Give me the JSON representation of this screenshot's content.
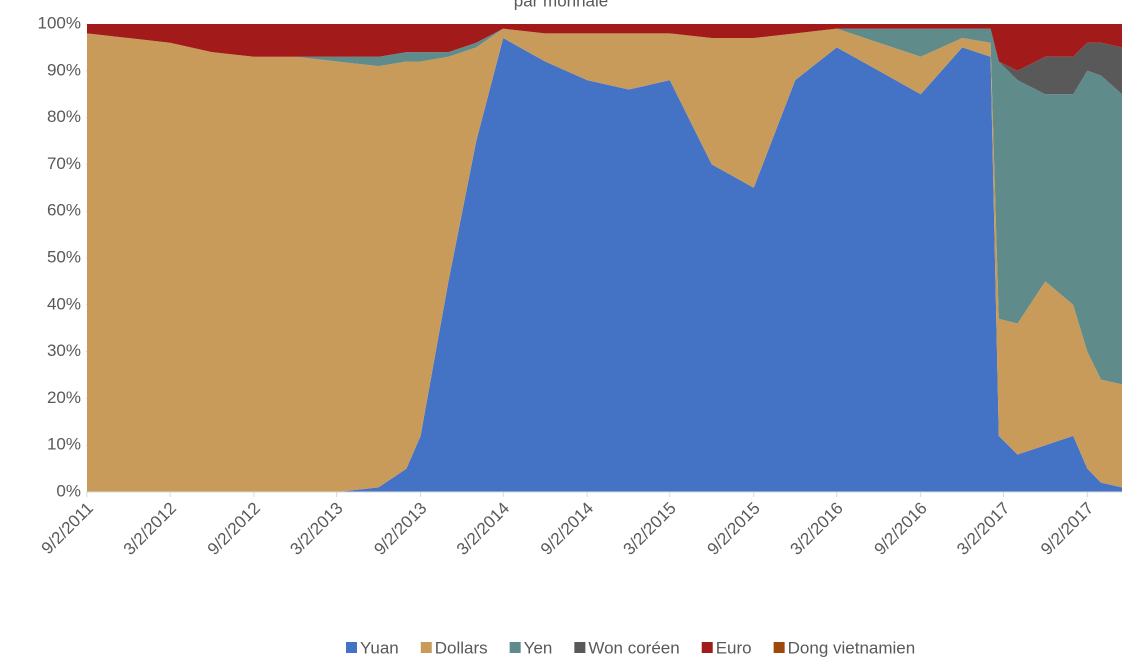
{
  "chart_data": {
    "type": "stacked_area",
    "title": "par monnaie",
    "x": [
      "9/2/2011",
      "12/2/2011",
      "3/2/2012",
      "6/2/2012",
      "9/2/2012",
      "12/2/2012",
      "3/2/2013",
      "6/2/2013",
      "8/2/2013",
      "9/2/2013",
      "11/2/2013",
      "1/2/2014",
      "3/2/2014",
      "6/2/2014",
      "9/2/2014",
      "12/2/2014",
      "3/2/2015",
      "6/2/2015",
      "9/2/2015",
      "12/2/2015",
      "3/2/2016",
      "6/2/2016",
      "9/2/2016",
      "12/2/2016",
      "2/2/2017",
      "2/20/2017",
      "4/2/2017",
      "6/2/2017",
      "8/2/2017",
      "9/2/2017",
      "10/2/2017",
      "11/17/2017"
    ],
    "series": [
      {
        "name": "Yuan",
        "color": "#4472c4",
        "values": [
          0,
          0,
          0,
          0,
          0,
          0,
          0,
          1,
          5,
          12,
          45,
          75,
          97,
          92,
          88,
          86,
          88,
          70,
          65,
          88,
          95,
          90,
          85,
          95,
          93,
          12,
          8,
          10,
          12,
          5,
          2,
          1
        ]
      },
      {
        "name": "Dollars",
        "color": "#c99b5a",
        "values": [
          98,
          97,
          96,
          94,
          93,
          93,
          92,
          90,
          87,
          80,
          48,
          20,
          2,
          6,
          10,
          12,
          10,
          27,
          32,
          10,
          4,
          6,
          8,
          2,
          3,
          25,
          28,
          35,
          28,
          25,
          22,
          22
        ]
      },
      {
        "name": "Yen",
        "color": "#5f8b8b",
        "values": [
          0,
          0,
          0,
          0,
          0,
          0,
          1,
          2,
          2,
          2,
          1,
          1,
          0,
          0,
          0,
          0,
          0,
          0,
          0,
          0,
          0,
          3,
          6,
          2,
          3,
          55,
          52,
          40,
          45,
          60,
          65,
          62
        ]
      },
      {
        "name": "Won coréen",
        "color": "#595959",
        "values": [
          0,
          0,
          0,
          0,
          0,
          0,
          0,
          0,
          0,
          0,
          0,
          0,
          0,
          0,
          0,
          0,
          0,
          0,
          0,
          0,
          0,
          0,
          0,
          0,
          0,
          0,
          2,
          8,
          8,
          6,
          7,
          10
        ]
      },
      {
        "name": "Euro",
        "color": "#a31a1a",
        "values": [
          2,
          3,
          4,
          6,
          7,
          7,
          7,
          7,
          6,
          6,
          6,
          4,
          1,
          2,
          2,
          2,
          2,
          3,
          3,
          2,
          1,
          1,
          1,
          1,
          1,
          8,
          10,
          7,
          7,
          4,
          4,
          5
        ]
      },
      {
        "name": "Dong vietnamien",
        "color": "#9e480e",
        "values": [
          0,
          0,
          0,
          0,
          0,
          0,
          0,
          0,
          0,
          0,
          0,
          0,
          0,
          0,
          0,
          0,
          0,
          0,
          0,
          0,
          0,
          0,
          0,
          0,
          0,
          0,
          0,
          0,
          0,
          0,
          0,
          0
        ]
      }
    ],
    "xlim": [
      "9/2/2011",
      "11/17/2017"
    ],
    "xticks": [
      "9/2/2011",
      "3/2/2012",
      "9/2/2012",
      "3/2/2013",
      "9/2/2013",
      "3/2/2014",
      "9/2/2014",
      "3/2/2015",
      "9/2/2015",
      "3/2/2016",
      "9/2/2016",
      "3/2/2017",
      "9/2/2017"
    ],
    "ylim": [
      0,
      100
    ],
    "yticks": [
      {
        "value": 0,
        "label": "0%"
      },
      {
        "value": 10,
        "label": "10%"
      },
      {
        "value": 20,
        "label": "20%"
      },
      {
        "value": 30,
        "label": "30%"
      },
      {
        "value": 40,
        "label": "40%"
      },
      {
        "value": 50,
        "label": "50%"
      },
      {
        "value": 60,
        "label": "60%"
      },
      {
        "value": 70,
        "label": "70%"
      },
      {
        "value": 80,
        "label": "80%"
      },
      {
        "value": 90,
        "label": "90%"
      },
      {
        "value": 100,
        "label": "100%"
      }
    ],
    "legend": "bottom"
  }
}
